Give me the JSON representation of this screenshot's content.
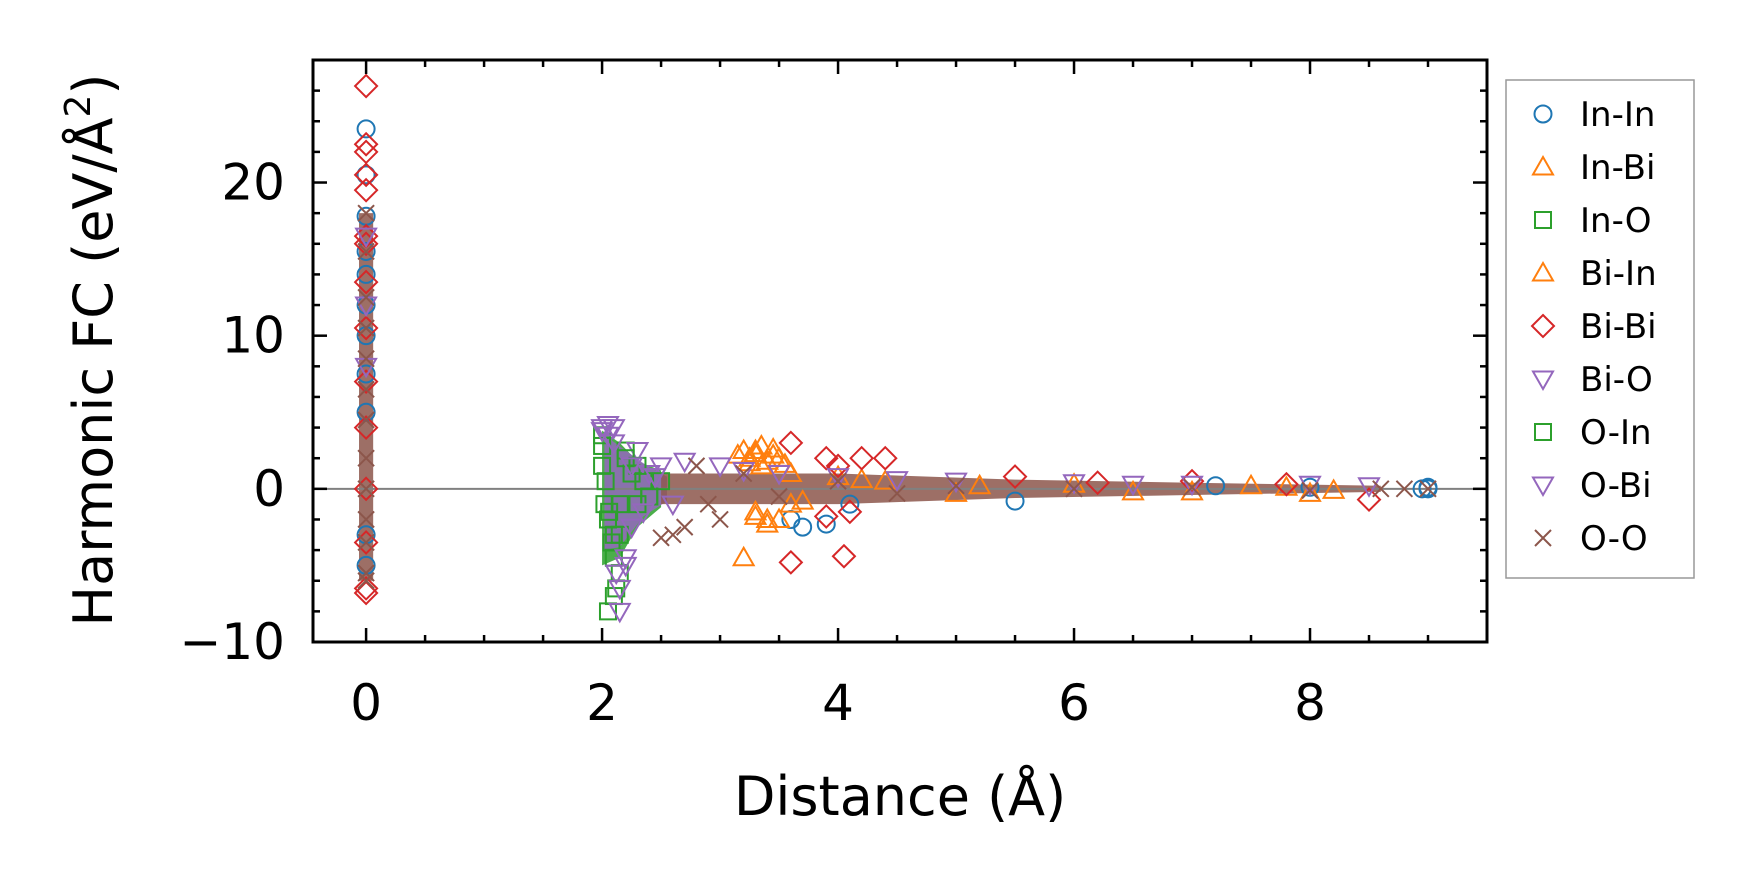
{
  "chart_data": {
    "type": "scatter",
    "title": "",
    "xlabel": "Distance (Å)",
    "ylabel": "Harmonic FC (eV/Å",
    "ylabel_superscript": "2",
    "ylabel_close": ")",
    "xlim": [
      -0.45,
      9.5
    ],
    "ylim": [
      -10,
      28
    ],
    "xticks": [
      0,
      2,
      4,
      6,
      8
    ],
    "yticks": [
      -10,
      0,
      10,
      20
    ],
    "xtick_labels": [
      "0",
      "2",
      "4",
      "6",
      "8"
    ],
    "ytick_labels": [
      "−10",
      "0",
      "10",
      "20"
    ],
    "grid": false,
    "zero_line": true,
    "legend_position": "outside-right",
    "series": [
      {
        "name": "In-In",
        "marker": "circle",
        "color": "#1f77b4",
        "x": [
          0,
          0,
          0,
          0,
          0,
          0,
          0,
          0,
          0,
          0,
          0,
          3.6,
          3.7,
          3.9,
          4.1,
          5.5,
          7.2,
          8.0,
          8.95,
          9.0,
          9.0
        ],
        "y": [
          23.5,
          20.5,
          17.8,
          15.5,
          14.0,
          12.0,
          10.0,
          7.5,
          5.0,
          -3.0,
          -5.0,
          -2.0,
          -2.5,
          -2.3,
          -1.0,
          -0.8,
          0.2,
          0.1,
          0.0,
          0.1,
          0.0
        ]
      },
      {
        "name": "In-Bi",
        "marker": "triangle-up",
        "color": "#ff7f0e",
        "x": [
          3.2,
          3.25,
          3.3,
          3.35,
          3.4,
          3.45,
          3.5,
          3.6,
          3.3,
          3.4,
          3.2,
          3.5,
          3.7,
          4.0,
          4.4,
          5.0,
          6.0,
          7.0,
          7.5,
          8.0
        ],
        "y": [
          2.5,
          2.0,
          2.5,
          2.8,
          1.8,
          2.6,
          2.0,
          1.0,
          -1.5,
          -2.0,
          -4.5,
          -2.0,
          -0.8,
          0.8,
          0.5,
          -0.3,
          0.3,
          -0.2,
          0.2,
          -0.3
        ]
      },
      {
        "name": "In-O",
        "marker": "square",
        "color": "#2ca02c",
        "x": [
          2.0,
          2.0,
          2.02,
          2.05,
          2.08,
          2.1,
          2.12,
          2.15,
          2.2,
          2.25,
          2.3,
          2.35,
          2.4,
          2.05,
          2.1,
          2.15
        ],
        "y": [
          3.5,
          1.5,
          -1.0,
          -2.0,
          -3.5,
          -4.5,
          -6.5,
          -3.0,
          2.5,
          1.0,
          -1.0,
          0.5,
          -0.5,
          -8.0,
          -7.0,
          -5.5
        ]
      },
      {
        "name": "Bi-In",
        "marker": "triangle-up",
        "color": "#ff7f0e",
        "x": [
          3.15,
          3.25,
          3.3,
          3.35,
          3.45,
          3.55,
          3.3,
          3.4,
          3.6,
          4.2,
          5.2,
          6.5,
          7.8,
          8.2
        ],
        "y": [
          2.2,
          1.7,
          2.3,
          1.5,
          2.2,
          1.6,
          -1.8,
          -2.3,
          -1.0,
          0.6,
          0.2,
          -0.2,
          0.1,
          -0.1
        ]
      },
      {
        "name": "Bi-Bi",
        "marker": "diamond",
        "color": "#d62728",
        "x": [
          0,
          0,
          0,
          0,
          0,
          0,
          0,
          0,
          0,
          0,
          0,
          0,
          0,
          0,
          0,
          3.6,
          3.6,
          3.9,
          4.0,
          4.05,
          4.2,
          4.4,
          3.9,
          4.1,
          5.5,
          6.2,
          7.0,
          7.8,
          8.5
        ],
        "y": [
          26.3,
          22.5,
          22.0,
          20.5,
          19.5,
          16.5,
          16.0,
          13.5,
          10.5,
          7.0,
          4.0,
          0.0,
          -3.5,
          -6.5,
          -6.8,
          3.0,
          -4.8,
          2.0,
          1.5,
          -4.4,
          2.0,
          2.0,
          -1.8,
          -1.5,
          0.8,
          0.4,
          0.5,
          0.3,
          -0.7
        ]
      },
      {
        "name": "Bi-O",
        "marker": "triangle-down",
        "color": "#9467bd",
        "x": [
          0,
          0,
          0,
          2.0,
          2.05,
          2.1,
          2.12,
          2.15,
          2.2,
          2.25,
          2.3,
          2.4,
          2.5,
          2.7,
          3.0,
          3.5,
          4.0,
          5.0,
          6.0,
          7.0,
          8.0,
          8.5
        ],
        "y": [
          16.5,
          12.0,
          8.0,
          4.0,
          3.5,
          4.0,
          -5.5,
          -6.5,
          -4.5,
          -2.5,
          2.5,
          1.0,
          1.5,
          1.8,
          1.5,
          1.0,
          0.8,
          0.5,
          0.4,
          0.3,
          0.3,
          0.2
        ]
      },
      {
        "name": "O-In",
        "marker": "square",
        "color": "#2ca02c",
        "x": [
          2.0,
          2.03,
          2.06,
          2.1,
          2.15,
          2.2,
          2.3,
          2.4,
          2.5
        ],
        "y": [
          2.8,
          0.5,
          -1.5,
          -3.0,
          -1.0,
          2.0,
          1.5,
          -0.5,
          0.5
        ]
      },
      {
        "name": "O-Bi",
        "marker": "triangle-down",
        "color": "#9467bd",
        "x": [
          2.0,
          2.05,
          2.1,
          2.15,
          2.2,
          2.25,
          2.35,
          2.45,
          2.6,
          3.2,
          4.5,
          6.5
        ],
        "y": [
          3.8,
          4.2,
          3.0,
          -8.0,
          -5.0,
          1.5,
          -1.5,
          0.8,
          -1.0,
          1.2,
          0.6,
          0.3
        ]
      },
      {
        "name": "O-O",
        "marker": "x",
        "color": "#8c564b",
        "x": [
          0,
          0,
          0,
          0,
          0,
          0,
          0,
          0,
          0,
          0,
          0,
          0,
          0,
          2.5,
          2.6,
          2.7,
          2.8,
          2.9,
          3.0,
          3.2,
          3.5,
          4.0,
          4.5,
          5.0,
          6.0,
          7.0,
          8.0,
          8.6,
          8.8,
          9.0
        ],
        "y": [
          18.0,
          15.5,
          12.5,
          10.5,
          8.5,
          6.5,
          4.5,
          2.0,
          0.0,
          -2.0,
          -3.5,
          -5.5,
          -6.0,
          -3.2,
          -3.0,
          -2.5,
          1.5,
          -1.0,
          -2.0,
          1.0,
          -0.5,
          0.5,
          -0.3,
          0.2,
          0.0,
          0.1,
          -0.1,
          0.0,
          0.0,
          0.0
        ]
      }
    ]
  }
}
